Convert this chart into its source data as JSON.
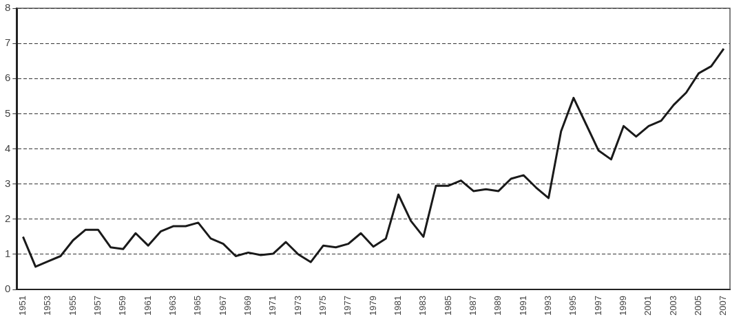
{
  "chart_data": {
    "type": "line",
    "categories": [
      "1951",
      null,
      "1953",
      null,
      "1955",
      null,
      "1957",
      null,
      "1959",
      null,
      "1961",
      null,
      "1963",
      null,
      "1965",
      null,
      "1967",
      null,
      "1969",
      null,
      "1971",
      null,
      "1973",
      null,
      "1975",
      null,
      "1977",
      null,
      "1979",
      null,
      "1981",
      null,
      "1983",
      null,
      "1985",
      null,
      "1987",
      null,
      "1989",
      null,
      "1991",
      null,
      "1993",
      null,
      "1995",
      null,
      "1997",
      null,
      "1999",
      null,
      "2001",
      null,
      "2003",
      null,
      "2005",
      null,
      "2007"
    ],
    "series": [
      {
        "color": "#1a1a1a",
        "values": [
          1.5,
          0.65,
          0.8,
          0.95,
          1.4,
          1.7,
          1.7,
          1.2,
          1.15,
          1.6,
          1.25,
          1.65,
          1.8,
          1.8,
          1.9,
          1.45,
          1.3,
          0.95,
          1.05,
          0.98,
          1.02,
          1.35,
          1.0,
          0.78,
          1.25,
          1.2,
          1.3,
          1.6,
          1.22,
          1.45,
          2.7,
          1.95,
          1.5,
          2.95,
          2.95,
          3.1,
          2.8,
          2.85,
          2.8,
          3.15,
          3.25,
          2.9,
          2.6,
          4.5,
          5.45,
          4.7,
          3.95,
          3.7,
          4.65,
          4.35,
          4.65,
          4.8,
          5.25,
          5.6,
          6.15,
          6.35,
          6.85
        ]
      }
    ],
    "ylim": [
      0,
      8
    ],
    "yticks": [
      0,
      1,
      2,
      3,
      4,
      5,
      6,
      7,
      8
    ],
    "grid": "y",
    "legend": false,
    "marker": "none",
    "line_style": "solid"
  }
}
